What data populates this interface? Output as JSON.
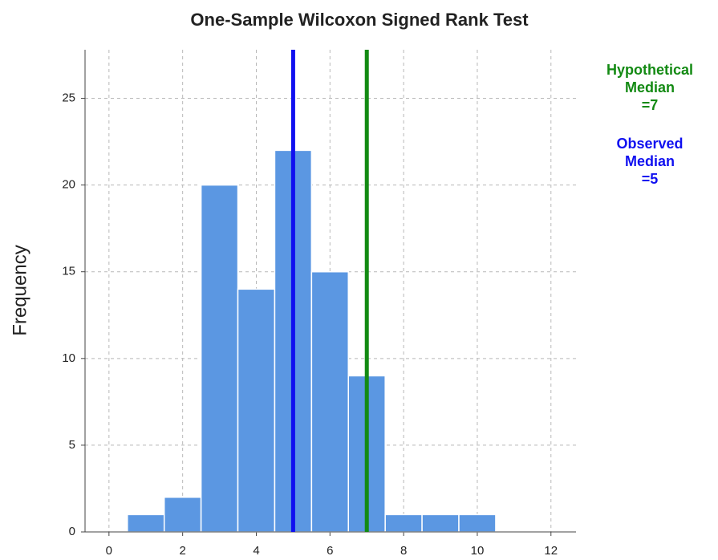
{
  "chart_data": {
    "type": "histogram",
    "title": "One-Sample Wilcoxon Signed Rank Test",
    "y_label": "Frequency",
    "bins": [
      0.5,
      1.5,
      2.5,
      3.5,
      4.5,
      5.5,
      6.5,
      7.5,
      8.5,
      9.5,
      10.5
    ],
    "counts": [
      1,
      2,
      20,
      14,
      22,
      15,
      9,
      1,
      1,
      1
    ],
    "color": "#5b97e2",
    "xlim": [
      -0.65,
      12.68
    ],
    "xticks": [
      0,
      2,
      4,
      6,
      8,
      10,
      12
    ],
    "ylim": [
      0,
      27.8
    ],
    "yticks": [
      0,
      5,
      10,
      15,
      20,
      25
    ],
    "grid": true,
    "reference_lines": [
      {
        "x": 7,
        "color": "#138a13",
        "lines": [
          "Hypothetical",
          "Median",
          "=7"
        ]
      },
      {
        "x": 5,
        "color": "#1010f0",
        "lines": [
          "Observed",
          "Median",
          "=5"
        ]
      }
    ]
  }
}
